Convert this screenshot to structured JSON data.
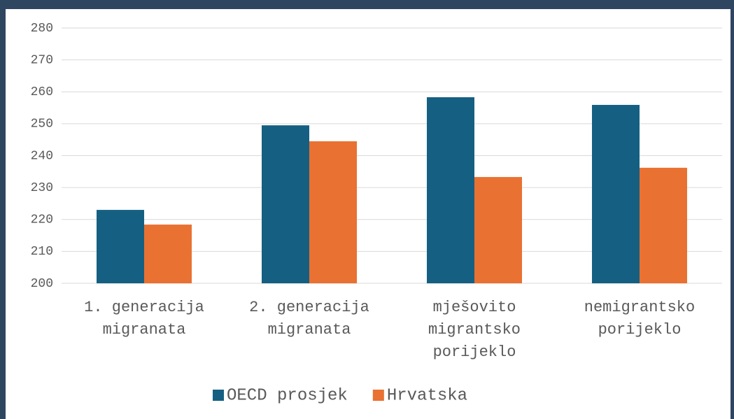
{
  "chart_data": {
    "type": "bar",
    "categories": [
      "1. generacija migranata",
      "2. generacija migranata",
      "mješovito migrantsko porijeklo",
      "nemigrantsko porijeklo"
    ],
    "series": [
      {
        "name": "OECD prosjek",
        "color": "#156082",
        "values": [
          223.0,
          249.5,
          258.3,
          255.9
        ]
      },
      {
        "name": "Hrvatska",
        "color": "#e97132",
        "values": [
          218.4,
          244.5,
          233.3,
          236.2
        ]
      }
    ],
    "ylim": [
      200,
      280
    ],
    "yticks": [
      200,
      210,
      220,
      230,
      240,
      250,
      260,
      270,
      280
    ],
    "grid": true,
    "legend": "bottom"
  }
}
